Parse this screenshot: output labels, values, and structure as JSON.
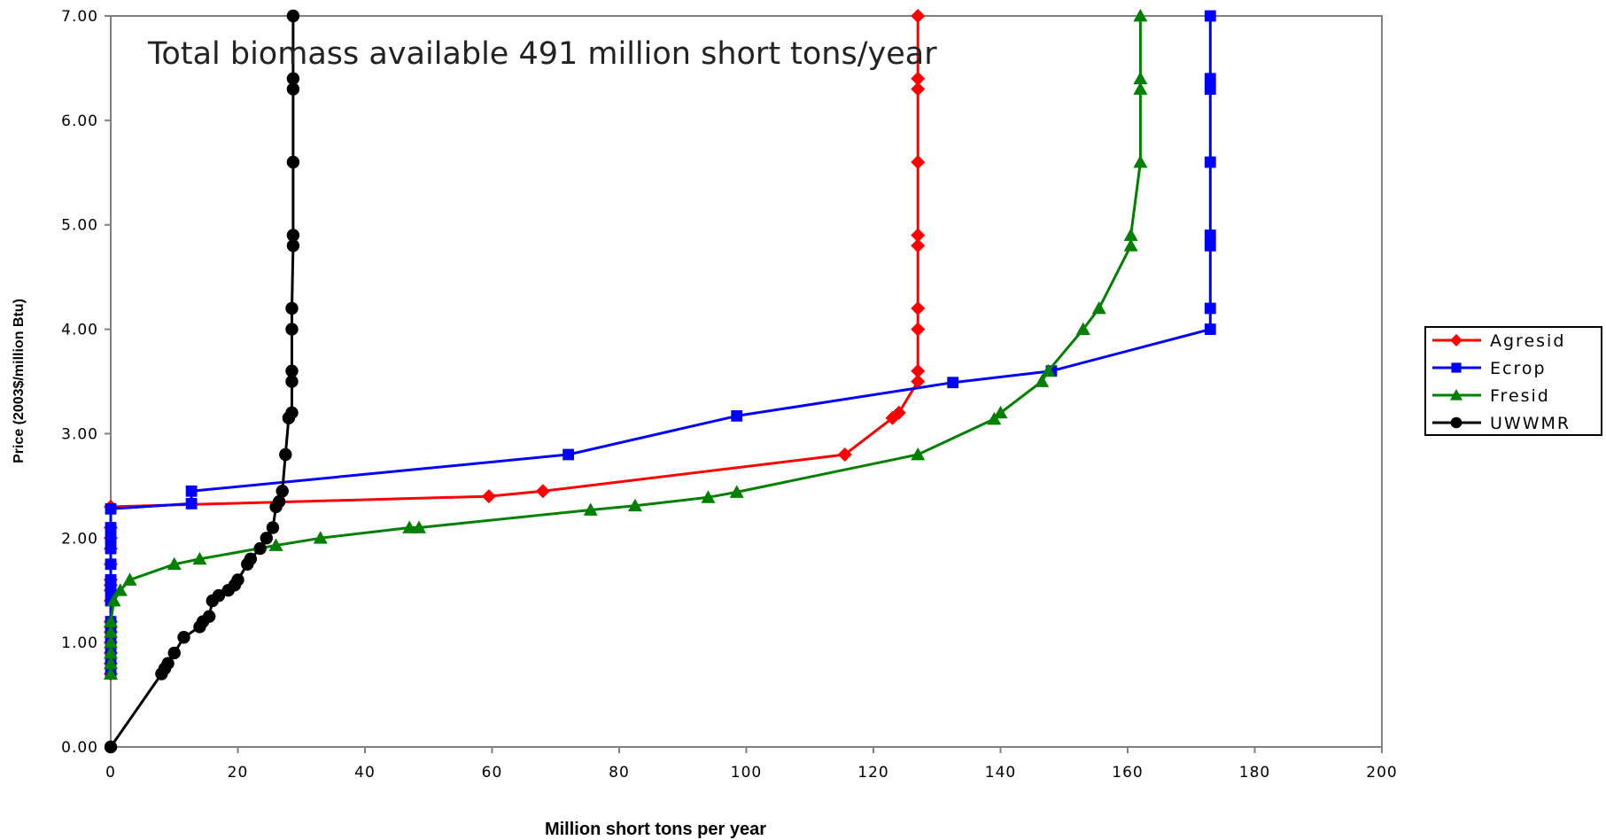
{
  "chart_data": {
    "type": "line",
    "title": "",
    "annotation": "Total biomass available 491 million short tons/year",
    "xlabel": "Million short tons per year",
    "ylabel": "Price (2003$/million Btu)",
    "xlim": [
      0,
      200
    ],
    "ylim": [
      0,
      7
    ],
    "xticks": [
      "0",
      "20",
      "40",
      "60",
      "80",
      "100",
      "120",
      "140",
      "160",
      "180",
      "200"
    ],
    "yticks": [
      "0.00",
      "1.00",
      "2.00",
      "3.00",
      "4.00",
      "5.00",
      "6.00",
      "7.00"
    ],
    "grid": false,
    "legend_position": "right",
    "series": [
      {
        "name": "Agresid",
        "color": "#ff0000",
        "marker": "diamond",
        "points": [
          [
            0,
            0.7
          ],
          [
            0,
            0.8
          ],
          [
            0,
            0.9
          ],
          [
            0,
            1.0
          ],
          [
            0,
            1.1
          ],
          [
            0,
            1.15
          ],
          [
            0,
            1.2
          ],
          [
            0,
            1.4
          ],
          [
            0,
            1.5
          ],
          [
            0,
            1.55
          ],
          [
            0,
            1.6
          ],
          [
            0,
            1.75
          ],
          [
            0,
            1.9
          ],
          [
            0,
            2.0
          ],
          [
            0,
            2.1
          ],
          [
            0,
            2.3
          ],
          [
            59.5,
            2.4
          ],
          [
            68,
            2.45
          ],
          [
            115.5,
            2.8
          ],
          [
            123,
            3.15
          ],
          [
            124,
            3.2
          ],
          [
            127,
            3.5
          ],
          [
            127,
            3.6
          ],
          [
            127,
            4.0
          ],
          [
            127,
            4.2
          ],
          [
            127,
            4.8
          ],
          [
            127,
            4.9
          ],
          [
            127,
            5.6
          ],
          [
            127,
            6.3
          ],
          [
            127,
            6.4
          ],
          [
            127,
            7.0
          ]
        ]
      },
      {
        "name": "Ecrop",
        "color": "#0000ff",
        "marker": "square",
        "points": [
          [
            0,
            0.7
          ],
          [
            0,
            0.8
          ],
          [
            0,
            0.9
          ],
          [
            0,
            1.0
          ],
          [
            0,
            1.1
          ],
          [
            0,
            1.2
          ],
          [
            0,
            1.4
          ],
          [
            0,
            1.5
          ],
          [
            0,
            1.55
          ],
          [
            0,
            1.6
          ],
          [
            0,
            1.75
          ],
          [
            0,
            1.9
          ],
          [
            0,
            2.0
          ],
          [
            0,
            2.1
          ],
          [
            0,
            2.28
          ],
          [
            12.7,
            2.33
          ],
          [
            12.7,
            2.45
          ],
          [
            72,
            2.8
          ],
          [
            98.5,
            3.17
          ],
          [
            132.5,
            3.49
          ],
          [
            148,
            3.6
          ],
          [
            173,
            4.0
          ],
          [
            173,
            4.2
          ],
          [
            173,
            4.8
          ],
          [
            173,
            4.9
          ],
          [
            173,
            5.6
          ],
          [
            173,
            6.3
          ],
          [
            173,
            6.4
          ],
          [
            173,
            7.0
          ]
        ]
      },
      {
        "name": "Fresid",
        "color": "#008000",
        "marker": "triangle",
        "points": [
          [
            0,
            0.7
          ],
          [
            0,
            0.8
          ],
          [
            0,
            0.9
          ],
          [
            0,
            1.0
          ],
          [
            0,
            1.1
          ],
          [
            0,
            1.2
          ],
          [
            0.5,
            1.4
          ],
          [
            1.5,
            1.5
          ],
          [
            3,
            1.6
          ],
          [
            10,
            1.75
          ],
          [
            14,
            1.8
          ],
          [
            26,
            1.93
          ],
          [
            33,
            2.0
          ],
          [
            47,
            2.1
          ],
          [
            48.5,
            2.1
          ],
          [
            75.5,
            2.27
          ],
          [
            82.5,
            2.31
          ],
          [
            94,
            2.39
          ],
          [
            98.5,
            2.44
          ],
          [
            127,
            2.8
          ],
          [
            139,
            3.14
          ],
          [
            140,
            3.2
          ],
          [
            146.5,
            3.5
          ],
          [
            147.5,
            3.6
          ],
          [
            153,
            4.0
          ],
          [
            155.5,
            4.2
          ],
          [
            160.5,
            4.8
          ],
          [
            160.5,
            4.9
          ],
          [
            162,
            5.6
          ],
          [
            162,
            6.3
          ],
          [
            162,
            6.4
          ],
          [
            162,
            7.0
          ]
        ]
      },
      {
        "name": "UWWMR",
        "color": "#000000",
        "marker": "circle",
        "points": [
          [
            0,
            0.0
          ],
          [
            8,
            0.7
          ],
          [
            8.5,
            0.75
          ],
          [
            9,
            0.8
          ],
          [
            10,
            0.9
          ],
          [
            11.5,
            1.05
          ],
          [
            14,
            1.15
          ],
          [
            14.5,
            1.2
          ],
          [
            15.5,
            1.25
          ],
          [
            16,
            1.4
          ],
          [
            17,
            1.45
          ],
          [
            18.5,
            1.5
          ],
          [
            19.5,
            1.55
          ],
          [
            20,
            1.6
          ],
          [
            21.5,
            1.75
          ],
          [
            22,
            1.8
          ],
          [
            23.5,
            1.9
          ],
          [
            24.5,
            2.0
          ],
          [
            25.5,
            2.1
          ],
          [
            26,
            2.3
          ],
          [
            26.5,
            2.35
          ],
          [
            27,
            2.45
          ],
          [
            27.5,
            2.8
          ],
          [
            28,
            3.15
          ],
          [
            28.5,
            3.2
          ],
          [
            28.5,
            3.5
          ],
          [
            28.5,
            3.6
          ],
          [
            28.5,
            4.0
          ],
          [
            28.5,
            4.2
          ],
          [
            28.7,
            4.8
          ],
          [
            28.7,
            4.9
          ],
          [
            28.7,
            5.6
          ],
          [
            28.7,
            6.3
          ],
          [
            28.7,
            6.4
          ],
          [
            28.7,
            7.0
          ]
        ]
      }
    ]
  }
}
